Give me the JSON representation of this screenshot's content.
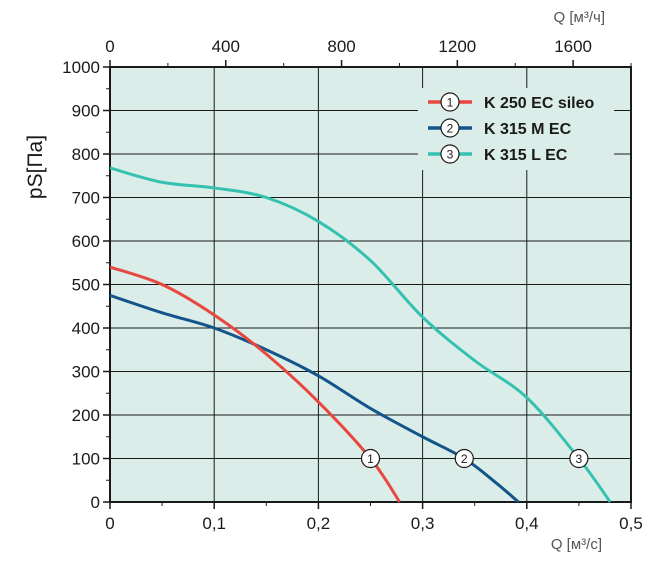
{
  "chart_data": {
    "type": "line",
    "xlabel": "Q [м³/с]",
    "x2label": "Q [м³/ч]",
    "ylabel": "pS[Па]",
    "xlim": [
      0,
      0.5
    ],
    "ylim": [
      0,
      1000
    ],
    "x_ticks": [
      "0",
      "0,1",
      "0,2",
      "0,3",
      "0,4",
      "0,5"
    ],
    "x2_ticks": [
      "0",
      "400",
      "800",
      "1200",
      "1600"
    ],
    "y_ticks": [
      "0",
      "100",
      "200",
      "300",
      "400",
      "500",
      "600",
      "700",
      "800",
      "900",
      "1000"
    ],
    "grid": true,
    "legend_position": "top-right",
    "series": [
      {
        "name": "K 250 EC sileo",
        "marker": "1",
        "color": "#e8473f",
        "points": [
          [
            0,
            540
          ],
          [
            0.05,
            500
          ],
          [
            0.1,
            430
          ],
          [
            0.15,
            340
          ],
          [
            0.2,
            230
          ],
          [
            0.25,
            100
          ],
          [
            0.278,
            0
          ]
        ],
        "marker_at": [
          0.25,
          100
        ]
      },
      {
        "name": "K 315 M EC",
        "marker": "2",
        "color": "#13548a",
        "points": [
          [
            0,
            475
          ],
          [
            0.05,
            435
          ],
          [
            0.1,
            400
          ],
          [
            0.15,
            350
          ],
          [
            0.2,
            290
          ],
          [
            0.25,
            215
          ],
          [
            0.3,
            150
          ],
          [
            0.34,
            100
          ],
          [
            0.37,
            45
          ],
          [
            0.392,
            0
          ]
        ],
        "marker_at": [
          0.34,
          100
        ]
      },
      {
        "name": "K 315 L EC",
        "marker": "3",
        "color": "#35c1b0",
        "points": [
          [
            0,
            768
          ],
          [
            0.05,
            735
          ],
          [
            0.1,
            722
          ],
          [
            0.15,
            700
          ],
          [
            0.2,
            645
          ],
          [
            0.25,
            555
          ],
          [
            0.3,
            425
          ],
          [
            0.35,
            325
          ],
          [
            0.4,
            240
          ],
          [
            0.45,
            100
          ],
          [
            0.48,
            0
          ]
        ],
        "marker_at": [
          0.45,
          100
        ]
      }
    ]
  }
}
